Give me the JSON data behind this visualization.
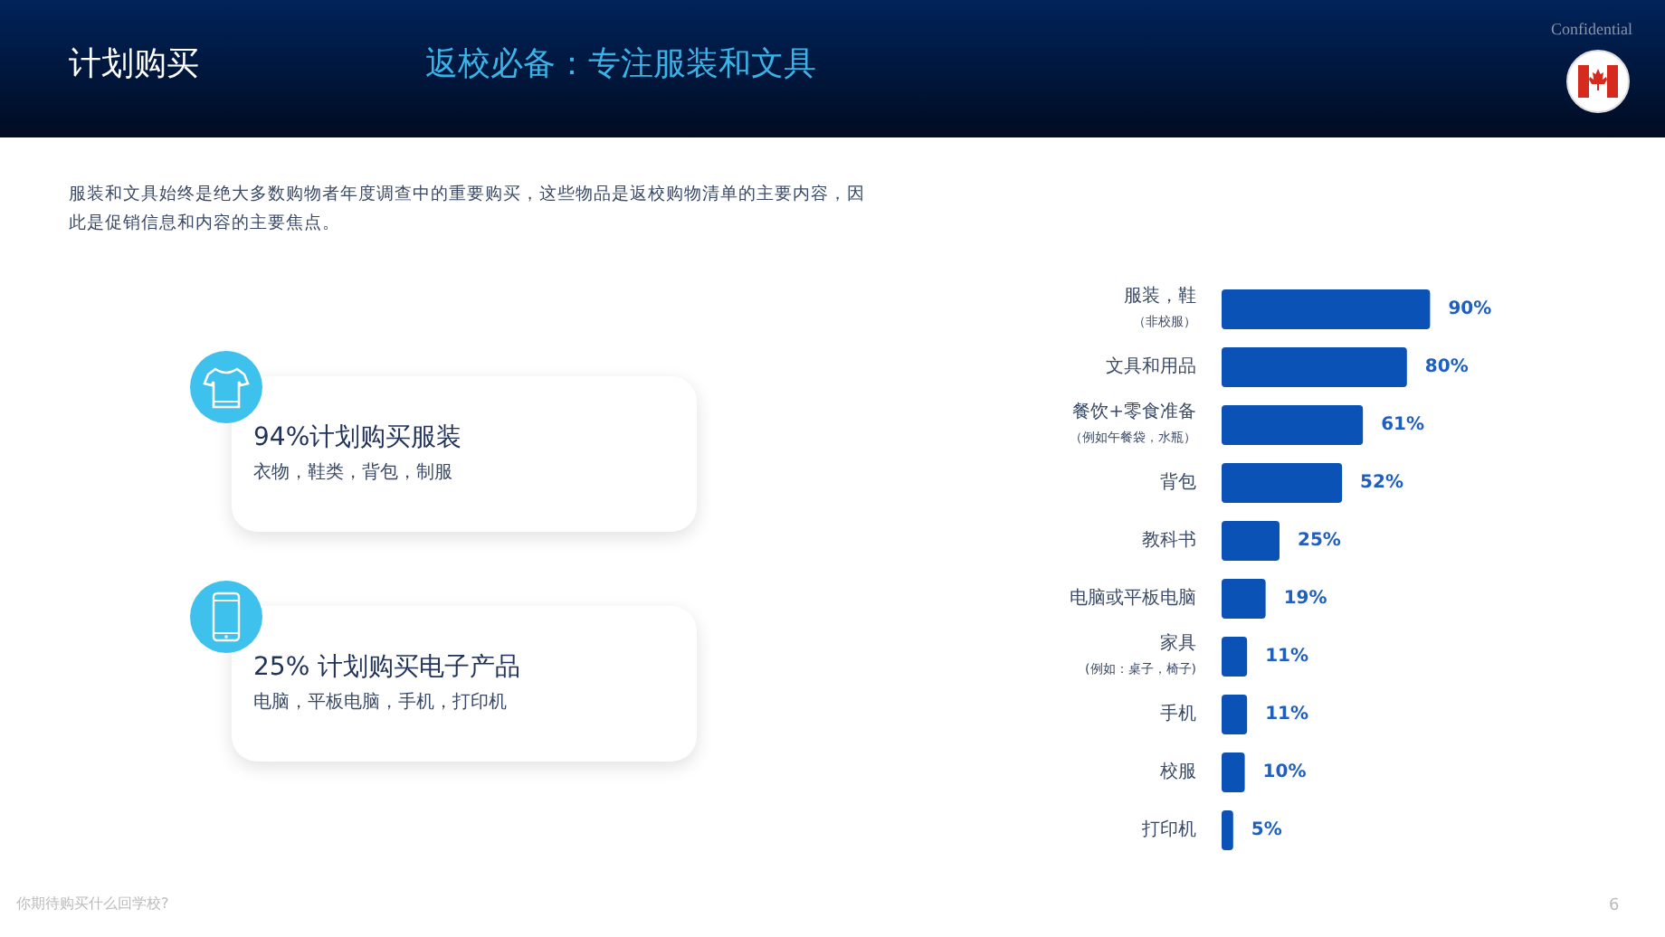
{
  "chart_data": {
    "type": "bar",
    "orientation": "horizontal",
    "title": "返校必备：专注服装和文具",
    "subtitle": "服装和文具始终是绝大多数购物者年度调查中的重要购买，这些物品是返校购物清单的主要内容，因此是促销信息和内容的主要焦点。",
    "categories": [
      "服装，鞋（非校服）",
      "文具和用品",
      "餐饮+零食准备（例如午餐袋，水瓶）",
      "背包",
      "教科书",
      "电脑或平板电脑",
      "家具(例如：桌子，椅子)",
      "手机",
      "校服",
      "打印机"
    ],
    "values": [
      90,
      80,
      61,
      52,
      25,
      19,
      11,
      11,
      10,
      5
    ],
    "value_labels": [
      "90%",
      "80%",
      "61%",
      "52%",
      "25%",
      "19%",
      "11%",
      "11%",
      "10%",
      "5%"
    ],
    "color": "#0a52b5",
    "annotations": [
      "计划购买",
      "Confidential",
      "94%计划购买服装",
      "衣物，鞋类，背包，制服",
      "25% 计划购买电子产品",
      "电脑，平板电脑，手机，打印机",
      "你期待购买什么回学校?",
      "6"
    ]
  }
}
